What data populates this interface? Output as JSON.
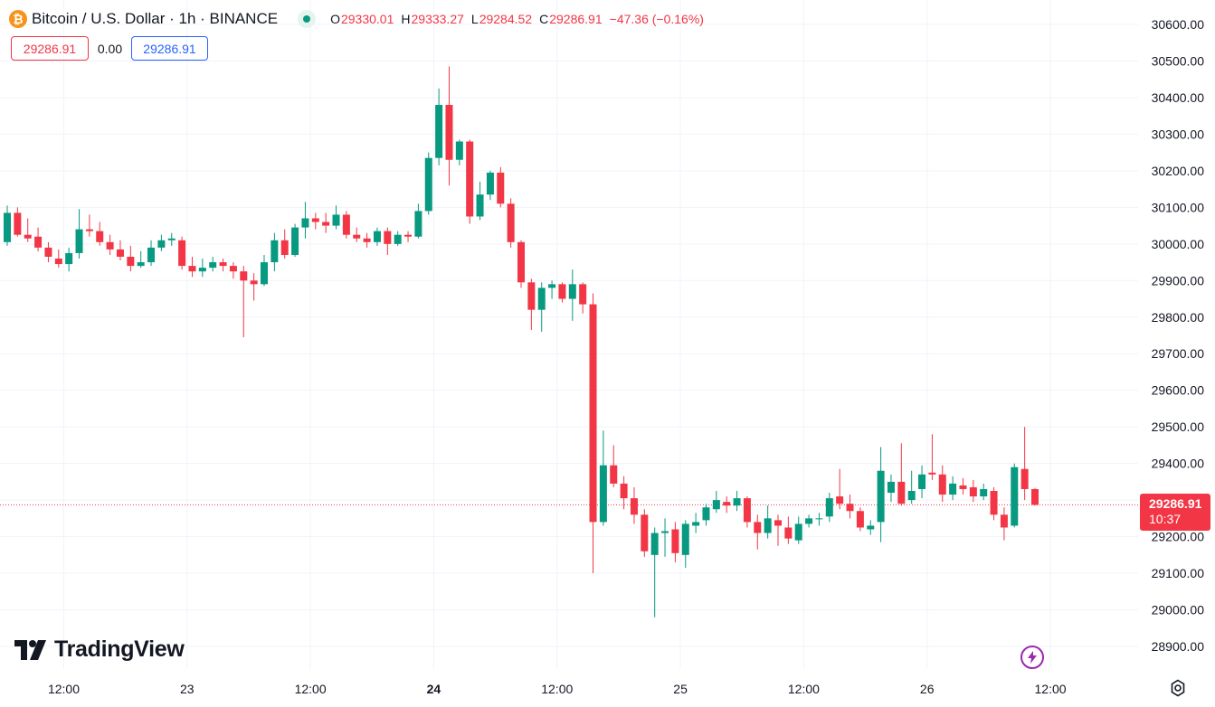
{
  "legend": {
    "coin_icon": "bitcoin-icon",
    "coin_glyph": "₿",
    "symbol": "Bitcoin / U.S. Dollar · 1h · BINANCE",
    "status_color": "#089981",
    "open_label": "O",
    "open": "29330.01",
    "high_label": "H",
    "high": "29333.27",
    "low_label": "L",
    "low": "29284.52",
    "close_label": "C",
    "close": "29286.91",
    "change": "−47.36 (−0.16%)"
  },
  "quote": {
    "sell": "29286.91",
    "spread": "0.00",
    "buy": "29286.91"
  },
  "branding": {
    "logo_icon": "tradingview-icon",
    "logo_text": "TradingView"
  },
  "last_price": {
    "price": "29286.91",
    "countdown": "10:37",
    "color": "#f23645"
  },
  "colors": {
    "up": "#089981",
    "down": "#f23645",
    "grid": "#f0f3fa",
    "axis_text": "#131722"
  },
  "chart_data": {
    "type": "candlestick",
    "ylim": [
      28850,
      30650
    ],
    "y_ticks": [
      "30600.00",
      "30500.00",
      "30400.00",
      "30300.00",
      "30200.00",
      "30100.00",
      "30000.00",
      "29900.00",
      "29800.00",
      "29700.00",
      "29600.00",
      "29500.00",
      "29400.00",
      "29300.00",
      "29200.00",
      "29100.00",
      "29000.00",
      "28900.00"
    ],
    "x_ticks": [
      {
        "label": "12:00",
        "idx": 5.5,
        "bold": false
      },
      {
        "label": "23",
        "idx": 17.5,
        "bold": false
      },
      {
        "label": "12:00",
        "idx": 29.5,
        "bold": false
      },
      {
        "label": "24",
        "idx": 41.5,
        "bold": true
      },
      {
        "label": "12:00",
        "idx": 53.5,
        "bold": false
      },
      {
        "label": "25",
        "idx": 65.5,
        "bold": false
      },
      {
        "label": "12:00",
        "idx": 77.5,
        "bold": false
      },
      {
        "label": "26",
        "idx": 89.5,
        "bold": false
      },
      {
        "label": "12:00",
        "idx": 101.5,
        "bold": false
      }
    ],
    "candles": [
      [
        30005,
        30085,
        30105,
        29995
      ],
      [
        30085,
        30025,
        30100,
        30020
      ],
      [
        30025,
        30015,
        30070,
        30005
      ],
      [
        30020,
        29990,
        30045,
        29980
      ],
      [
        29990,
        29965,
        30005,
        29950
      ],
      [
        29960,
        29945,
        29985,
        29935
      ],
      [
        29945,
        29975,
        29990,
        29925
      ],
      [
        29975,
        30040,
        30095,
        29960
      ],
      [
        30040,
        30035,
        30080,
        30020
      ],
      [
        30035,
        30005,
        30060,
        29995
      ],
      [
        30005,
        29985,
        30025,
        29970
      ],
      [
        29985,
        29965,
        30010,
        29955
      ],
      [
        29965,
        29940,
        29995,
        29925
      ],
      [
        29940,
        29950,
        29980,
        29935
      ],
      [
        29950,
        29990,
        30010,
        29940
      ],
      [
        29990,
        30010,
        30025,
        29980
      ],
      [
        30010,
        30015,
        30030,
        29995
      ],
      [
        30010,
        29940,
        30020,
        29930
      ],
      [
        29940,
        29925,
        29965,
        29910
      ],
      [
        29925,
        29935,
        29960,
        29910
      ],
      [
        29935,
        29950,
        29965,
        29925
      ],
      [
        29950,
        29940,
        29960,
        29925
      ],
      [
        29940,
        29925,
        29950,
        29905
      ],
      [
        29925,
        29900,
        29940,
        29745
      ],
      [
        29900,
        29890,
        29920,
        29845
      ],
      [
        29890,
        29950,
        29970,
        29885
      ],
      [
        29950,
        30010,
        30030,
        29925
      ],
      [
        30010,
        29970,
        30040,
        29960
      ],
      [
        29970,
        30045,
        30055,
        29965
      ],
      [
        30045,
        30070,
        30115,
        30015
      ],
      [
        30070,
        30060,
        30085,
        30040
      ],
      [
        30060,
        30050,
        30085,
        30030
      ],
      [
        30050,
        30080,
        30105,
        30040
      ],
      [
        30080,
        30025,
        30090,
        30015
      ],
      [
        30025,
        30015,
        30045,
        30005
      ],
      [
        30015,
        30005,
        30030,
        29990
      ],
      [
        30005,
        30035,
        30045,
        29995
      ],
      [
        30035,
        30000,
        30045,
        29970
      ],
      [
        30000,
        30025,
        30035,
        29995
      ],
      [
        30025,
        30020,
        30035,
        30005
      ],
      [
        30020,
        30090,
        30110,
        30015
      ],
      [
        30090,
        30235,
        30250,
        30080
      ],
      [
        30235,
        30380,
        30425,
        30215
      ],
      [
        30380,
        30230,
        30485,
        30160
      ],
      [
        30230,
        30280,
        30285,
        30215
      ],
      [
        30280,
        30075,
        30285,
        30055
      ],
      [
        30075,
        30135,
        30170,
        30065
      ],
      [
        30135,
        30195,
        30200,
        30120
      ],
      [
        30195,
        30110,
        30210,
        30100
      ],
      [
        30110,
        30005,
        30125,
        29990
      ],
      [
        30005,
        29895,
        30010,
        29880
      ],
      [
        29895,
        29820,
        29905,
        29765
      ],
      [
        29820,
        29880,
        29895,
        29760
      ],
      [
        29880,
        29890,
        29900,
        29850
      ],
      [
        29890,
        29850,
        29895,
        29840
      ],
      [
        29850,
        29890,
        29930,
        29790
      ],
      [
        29890,
        29835,
        29895,
        29810
      ],
      [
        29835,
        29240,
        29865,
        29100
      ],
      [
        29240,
        29395,
        29490,
        29230
      ],
      [
        29395,
        29345,
        29450,
        29335
      ],
      [
        29345,
        29305,
        29365,
        29275
      ],
      [
        29305,
        29260,
        29335,
        29235
      ],
      [
        29260,
        29160,
        29275,
        29145
      ],
      [
        29150,
        29210,
        29225,
        28980
      ],
      [
        29210,
        29215,
        29250,
        29145
      ],
      [
        29220,
        29155,
        29240,
        29130
      ],
      [
        29150,
        29235,
        29245,
        29115
      ],
      [
        29230,
        29240,
        29265,
        29210
      ],
      [
        29245,
        29280,
        29290,
        29230
      ],
      [
        29275,
        29300,
        29325,
        29265
      ],
      [
        29295,
        29285,
        29310,
        29265
      ],
      [
        29285,
        29305,
        29325,
        29270
      ],
      [
        29305,
        29240,
        29310,
        29225
      ],
      [
        29240,
        29210,
        29260,
        29165
      ],
      [
        29210,
        29250,
        29285,
        29195
      ],
      [
        29245,
        29230,
        29260,
        29175
      ],
      [
        29225,
        29195,
        29255,
        29180
      ],
      [
        29190,
        29235,
        29255,
        29180
      ],
      [
        29235,
        29250,
        29260,
        29225
      ],
      [
        29250,
        29250,
        29265,
        29230
      ],
      [
        29255,
        29305,
        29320,
        29240
      ],
      [
        29310,
        29290,
        29385,
        29275
      ],
      [
        29290,
        29270,
        29315,
        29250
      ],
      [
        29270,
        29225,
        29280,
        29215
      ],
      [
        29220,
        29230,
        29245,
        29205
      ],
      [
        29240,
        29380,
        29445,
        29185
      ],
      [
        29320,
        29350,
        29370,
        29295
      ],
      [
        29350,
        29290,
        29455,
        29285
      ],
      [
        29300,
        29325,
        29380,
        29290
      ],
      [
        29330,
        29370,
        29395,
        29305
      ],
      [
        29375,
        29370,
        29480,
        29355
      ],
      [
        29370,
        29315,
        29395,
        29295
      ],
      [
        29315,
        29345,
        29365,
        29300
      ],
      [
        29340,
        29330,
        29360,
        29315
      ],
      [
        29335,
        29310,
        29355,
        29295
      ],
      [
        29310,
        29330,
        29345,
        29300
      ],
      [
        29325,
        29260,
        29335,
        29245
      ],
      [
        29260,
        29225,
        29280,
        29190
      ],
      [
        29230,
        29390,
        29400,
        29225
      ],
      [
        29385,
        29330,
        29500,
        29300
      ],
      [
        29330,
        29287,
        29333,
        29285
      ]
    ]
  }
}
